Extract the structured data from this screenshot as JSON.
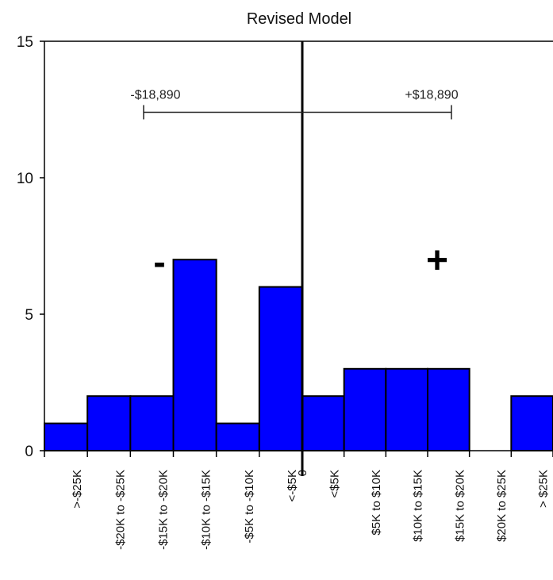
{
  "chart_data": {
    "type": "bar",
    "title": "Revised Model",
    "ylim": [
      0,
      15
    ],
    "yticks": [
      0,
      5,
      10,
      15
    ],
    "categories": [
      ">-$25K",
      "-$20K to -$25K",
      "-$15K to -$20K",
      "-$10K to -$15K",
      "-$5K to -$10K",
      "<-$5K",
      "<$5K",
      "$5K to $10K",
      "$10K to $15K",
      "$15K to $20K",
      "$20K to $25K",
      "> $25K"
    ],
    "values": [
      1,
      2,
      2,
      7,
      1,
      6,
      2,
      3,
      3,
      3,
      0,
      2
    ],
    "zero_label": "0",
    "bar_color": "#0000ff",
    "range_annotation": {
      "left_label": "-$18,890",
      "right_label": "+$18,890",
      "left_value": -18890,
      "right_value": 18890,
      "level": 12.4
    },
    "minus_sign": "-",
    "plus_sign": "+"
  }
}
